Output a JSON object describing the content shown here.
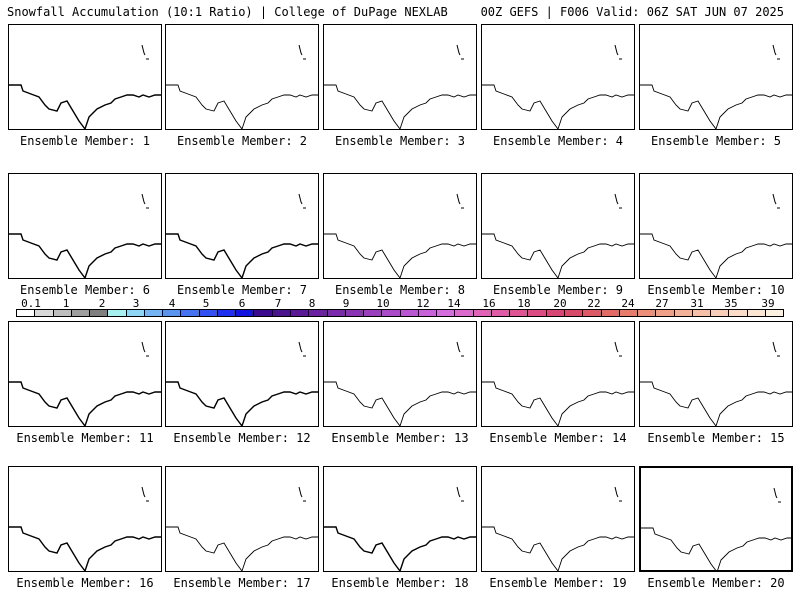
{
  "header": {
    "title": "Snowfall Accumulation (10:1 Ratio) | College of DuPage NEXLAB",
    "valid": "00Z GEFS | F006 Valid: 06Z SAT JUN 07 2025"
  },
  "members": [
    {
      "label": "Ensemble Member: 1"
    },
    {
      "label": "Ensemble Member: 2"
    },
    {
      "label": "Ensemble Member: 3"
    },
    {
      "label": "Ensemble Member: 4"
    },
    {
      "label": "Ensemble Member: 5"
    },
    {
      "label": "Ensemble Member: 6"
    },
    {
      "label": "Ensemble Member: 7"
    },
    {
      "label": "Ensemble Member: 8"
    },
    {
      "label": "Ensemble Member: 9"
    },
    {
      "label": "Ensemble Member: 10"
    },
    {
      "label": "Ensemble Member: 11"
    },
    {
      "label": "Ensemble Member: 12"
    },
    {
      "label": "Ensemble Member: 13"
    },
    {
      "label": "Ensemble Member: 14"
    },
    {
      "label": "Ensemble Member: 15"
    },
    {
      "label": "Ensemble Member: 16"
    },
    {
      "label": "Ensemble Member: 17"
    },
    {
      "label": "Ensemble Member: 18"
    },
    {
      "label": "Ensemble Member: 19"
    },
    {
      "label": "Ensemble Member: 20"
    }
  ],
  "colorbar": {
    "labels": [
      "0.1",
      "1",
      "2",
      "3",
      "4",
      "5",
      "6",
      "7",
      "8",
      "9",
      "10",
      "12",
      "14",
      "16",
      "18",
      "20",
      "22",
      "24",
      "27",
      "31",
      "35",
      "39"
    ],
    "colors": [
      "#ffffff",
      "#d9d9d9",
      "#bdbdbd",
      "#9e9e9e",
      "#7f7f7f",
      "#a8f0f0",
      "#8fd6f5",
      "#74b4f2",
      "#5a94ee",
      "#4674f0",
      "#3350f2",
      "#2030f0",
      "#1414e0",
      "#3c0a8c",
      "#4a148e",
      "#5a1a96",
      "#6a22a0",
      "#7a2aaa",
      "#8a34b4",
      "#9a3ebe",
      "#ab4ac8",
      "#bb56d2",
      "#c862d8",
      "#d46edc",
      "#dc6acc",
      "#e063b8",
      "#e05ca6",
      "#de5494",
      "#dc4c84",
      "#d84676",
      "#d84a6a",
      "#dc5a66",
      "#e26a64",
      "#e87c6c",
      "#ec8e78",
      "#f0a088",
      "#f4b298",
      "#f6c0a8",
      "#f8ceb8",
      "#fadcc8",
      "#fbe6d4",
      "#fcf0e0"
    ]
  }
}
